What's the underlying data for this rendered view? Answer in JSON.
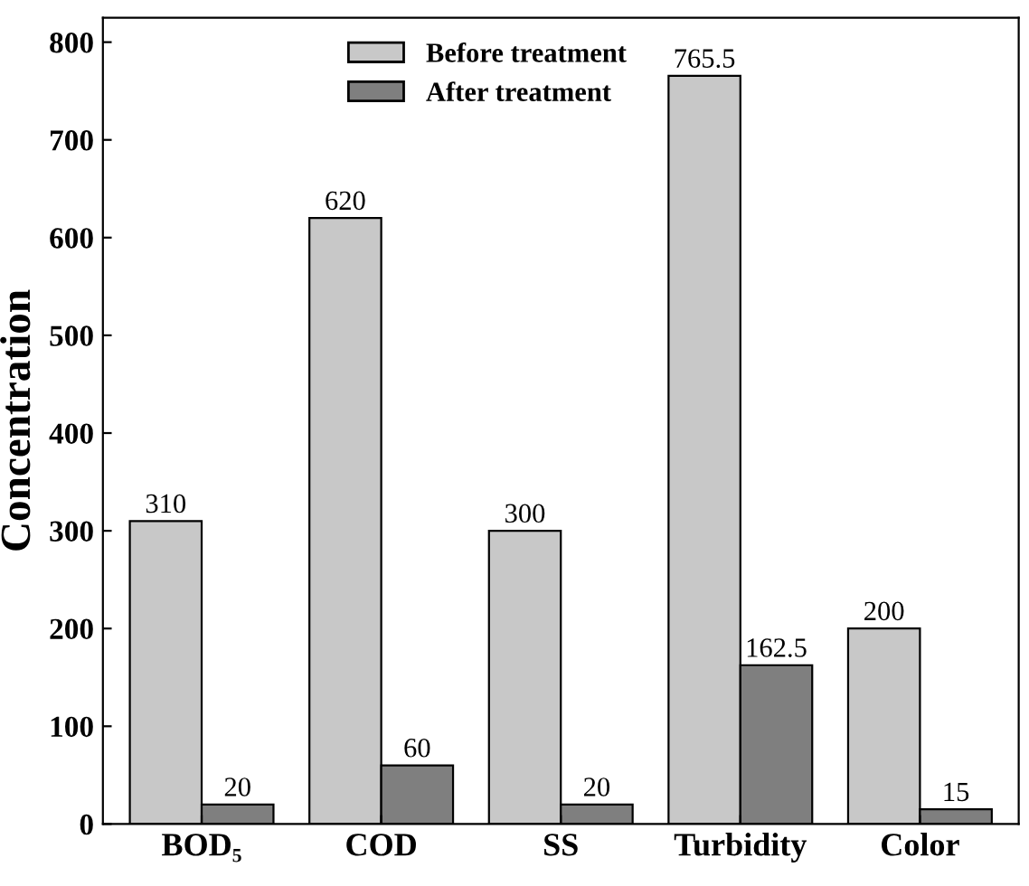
{
  "chart_data": {
    "type": "bar",
    "ylabel": "Concentration",
    "categories": [
      "BOD₅",
      "COD",
      "SS",
      "Turbidity",
      "Color"
    ],
    "series": [
      {
        "name": "Before treatment",
        "color": "#c8c8c8",
        "values": [
          310,
          620,
          300,
          765.5,
          200
        ]
      },
      {
        "name": "After treatment",
        "color": "#7f7f7f",
        "values": [
          20,
          60,
          20,
          162.5,
          15
        ]
      }
    ],
    "ylim": [
      0,
      825
    ],
    "yticks": [
      0,
      100,
      200,
      300,
      400,
      500,
      600,
      700,
      800
    ],
    "data_labels": true,
    "legend": "top",
    "grid": false
  }
}
